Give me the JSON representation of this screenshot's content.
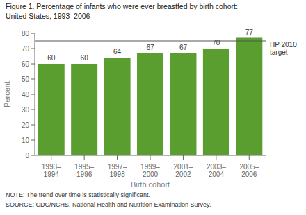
{
  "chart_data": {
    "type": "bar",
    "title": "Figure 1. Percentage of infants who were ever breastfed by birth cohort:",
    "subtitle": "United States, 1993–2006",
    "categories": [
      "1993–\n1994",
      "1995–\n1996",
      "1997–\n1998",
      "1999–\n2000",
      "2001–\n2002",
      "2003–\n2004",
      "2005–\n2006"
    ],
    "values": [
      60,
      60,
      64,
      67,
      67,
      70,
      77
    ],
    "color": "#5a9e2f",
    "xlabel": "Birth cohort",
    "ylabel": "Percent",
    "ylim": [
      0,
      80
    ],
    "yticks": [
      0,
      10,
      20,
      30,
      40,
      50,
      60,
      70,
      80
    ],
    "grid": false,
    "data_labels": true,
    "annotations": [
      {
        "text": "HP 2010\ntarget",
        "y": 75,
        "color": "#555555"
      },
      {
        "text": "NOTE: The trend over time is statistically significant."
      },
      {
        "text": "SOURCE: CDC/NCHS, National Health and Nutrition Examination Survey."
      }
    ]
  }
}
